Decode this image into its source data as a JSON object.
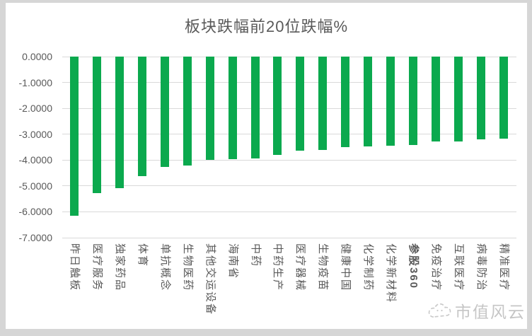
{
  "page": {
    "frame_color": "#d6d6d6",
    "card_color": "#ffffff"
  },
  "watermark": {
    "text": "市值风云",
    "icon": "cloud-logo-icon",
    "color": "#c6c6c6"
  },
  "chart_data": {
    "type": "bar",
    "title": "板块跌幅前20位跌幅%",
    "categories": [
      "昨日触板",
      "医疗服务",
      "独家药品",
      "体育",
      "单抗概念",
      "生物医药",
      "其他交运设备",
      "海南省",
      "中药",
      "中药生产",
      "医疗器械",
      "生物疫苗",
      "健康中国",
      "化学制药",
      "化学新材料",
      "参股360",
      "免疫治疗",
      "互联医疗",
      "病毒防治",
      "精准医疗"
    ],
    "values": [
      -6.15,
      -5.27,
      -5.09,
      -4.63,
      -4.26,
      -4.22,
      -3.98,
      -3.96,
      -3.93,
      -3.81,
      -3.63,
      -3.6,
      -3.5,
      -3.48,
      -3.45,
      -3.43,
      -3.28,
      -3.27,
      -3.2,
      -3.18
    ],
    "emphasized_category": "参股360",
    "xlabel": "",
    "ylabel": "",
    "ylim": [
      -7,
      0
    ],
    "y_ticks": [
      "0.0000",
      "-1.0000",
      "-2.0000",
      "-3.0000",
      "-4.0000",
      "-5.0000",
      "-6.0000",
      "-7.0000"
    ],
    "grid": true,
    "legend": "none",
    "bar_color": "#0ba94e",
    "gridline_color": "#d9d9d9",
    "text_color": "#595959"
  }
}
